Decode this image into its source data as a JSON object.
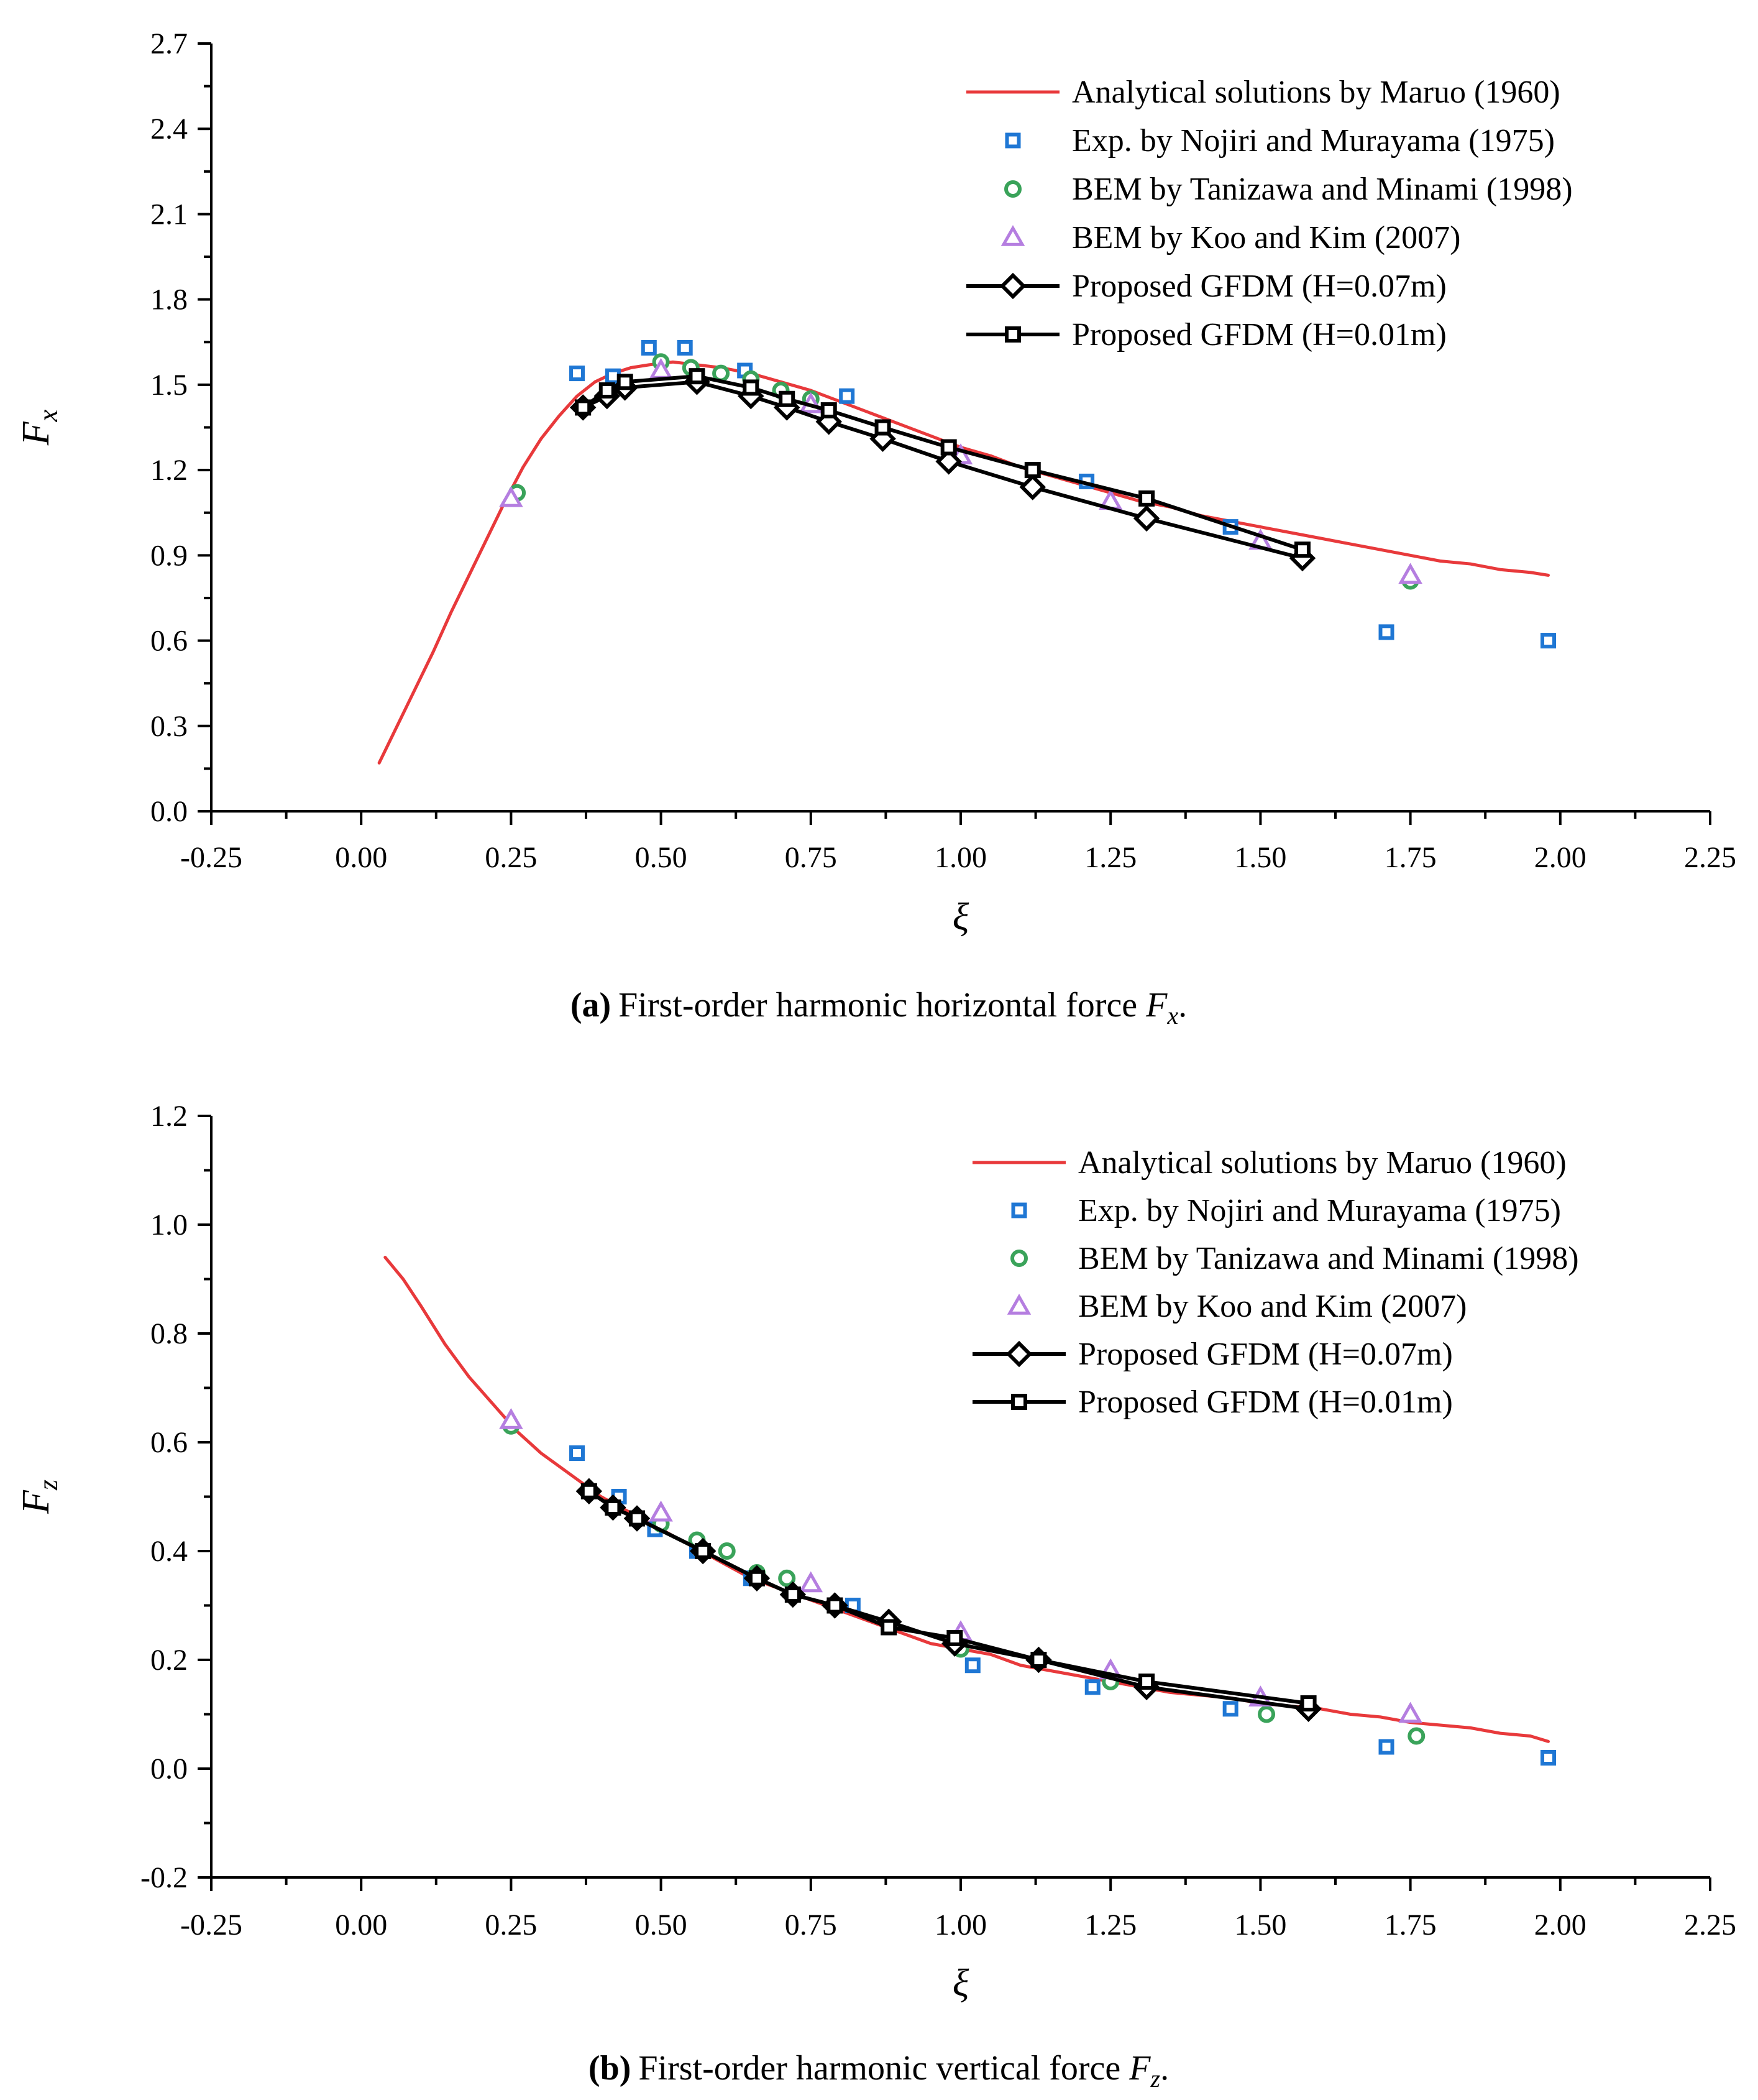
{
  "colors": {
    "analytical": "#e8393b",
    "exp": "#1f77d4",
    "tanizawa": "#3aa35a",
    "koo": "#b57ee0",
    "gfdm": "#000000"
  },
  "captions": [
    {
      "letter": "(a)",
      "text": "First-order harmonic horizontal force",
      "symbol": "F",
      "sub": "x",
      "end": "."
    },
    {
      "letter": "(b)",
      "text": "First-order harmonic vertical force",
      "symbol": "F",
      "sub": "z",
      "end": "."
    }
  ],
  "chart_data": [
    {
      "type": "line",
      "title": "",
      "xlabel": "ξ",
      "ylabel": "F",
      "ylabel_sub": "x",
      "xlim": [
        -0.25,
        2.25
      ],
      "ylim": [
        0.0,
        2.7
      ],
      "xticks": [
        -0.25,
        0.0,
        0.25,
        0.5,
        0.75,
        1.0,
        1.25,
        1.5,
        1.75,
        2.0,
        2.25
      ],
      "xtick_labels": [
        "-0.25",
        "0.00",
        "0.25",
        "0.50",
        "0.75",
        "1.00",
        "1.25",
        "1.50",
        "1.75",
        "2.00",
        "2.25"
      ],
      "yticks": [
        0.0,
        0.3,
        0.6,
        0.9,
        1.2,
        1.5,
        1.8,
        2.1,
        2.4,
        2.7
      ],
      "ytick_labels": [
        "0.0",
        "0.3",
        "0.6",
        "0.9",
        "1.2",
        "1.5",
        "1.8",
        "2.1",
        "2.4",
        "2.7"
      ],
      "legend_position": "top-right",
      "series": [
        {
          "name": "Analytical solutions by Maruo (1960)",
          "style": "line",
          "color_key": "analytical",
          "x": [
            0.03,
            0.06,
            0.09,
            0.12,
            0.15,
            0.18,
            0.21,
            0.24,
            0.27,
            0.3,
            0.33,
            0.36,
            0.39,
            0.42,
            0.45,
            0.48,
            0.52,
            0.56,
            0.6,
            0.65,
            0.7,
            0.75,
            0.8,
            0.85,
            0.9,
            0.95,
            1.0,
            1.05,
            1.1,
            1.15,
            1.2,
            1.25,
            1.3,
            1.35,
            1.4,
            1.45,
            1.5,
            1.55,
            1.6,
            1.65,
            1.7,
            1.75,
            1.8,
            1.85,
            1.9,
            1.95,
            1.98
          ],
          "y": [
            0.17,
            0.3,
            0.43,
            0.56,
            0.7,
            0.83,
            0.96,
            1.09,
            1.21,
            1.31,
            1.39,
            1.46,
            1.51,
            1.54,
            1.56,
            1.57,
            1.58,
            1.57,
            1.56,
            1.54,
            1.51,
            1.48,
            1.44,
            1.4,
            1.36,
            1.32,
            1.28,
            1.25,
            1.21,
            1.18,
            1.15,
            1.12,
            1.09,
            1.07,
            1.04,
            1.02,
            1.0,
            0.98,
            0.96,
            0.94,
            0.92,
            0.9,
            0.88,
            0.87,
            0.85,
            0.84,
            0.83
          ]
        },
        {
          "name": "Exp. by Nojiri and Murayama (1975)",
          "style": "square",
          "color_key": "exp",
          "x": [
            0.36,
            0.42,
            0.48,
            0.54,
            0.64,
            0.81,
            1.21,
            1.45,
            1.71,
            1.98
          ],
          "y": [
            1.54,
            1.53,
            1.63,
            1.63,
            1.55,
            1.46,
            1.16,
            1.0,
            0.63,
            0.6
          ]
        },
        {
          "name": "BEM by Tanizawa and Minami (1998)",
          "style": "circle",
          "color_key": "tanizawa",
          "x": [
            0.26,
            0.5,
            0.55,
            0.6,
            0.65,
            0.7,
            0.75,
            1.75
          ],
          "y": [
            1.12,
            1.58,
            1.56,
            1.54,
            1.52,
            1.48,
            1.45,
            0.81
          ]
        },
        {
          "name": "BEM by Koo and Kim (2007)",
          "style": "triangle",
          "color_key": "koo",
          "x": [
            0.25,
            0.5,
            0.75,
            1.0,
            1.25,
            1.5,
            1.75
          ],
          "y": [
            1.1,
            1.55,
            1.43,
            1.25,
            1.09,
            0.95,
            0.83
          ]
        },
        {
          "name": "Proposed GFDM (H=0.07m)",
          "style": "line-diamond",
          "color_key": "gfdm",
          "x": [
            0.37,
            0.41,
            0.44,
            0.56,
            0.65,
            0.71,
            0.78,
            0.87,
            0.98,
            1.12,
            1.31,
            1.57
          ],
          "y": [
            1.42,
            1.46,
            1.49,
            1.51,
            1.46,
            1.42,
            1.37,
            1.31,
            1.23,
            1.14,
            1.03,
            0.89
          ]
        },
        {
          "name": "Proposed GFDM (H=0.01m)",
          "style": "line-square",
          "color_key": "gfdm",
          "x": [
            0.37,
            0.41,
            0.44,
            0.56,
            0.65,
            0.71,
            0.78,
            0.87,
            0.98,
            1.12,
            1.31,
            1.57
          ],
          "y": [
            1.42,
            1.48,
            1.51,
            1.53,
            1.49,
            1.45,
            1.41,
            1.35,
            1.28,
            1.2,
            1.1,
            0.92
          ]
        }
      ]
    },
    {
      "type": "line",
      "title": "",
      "xlabel": "ξ",
      "ylabel": "F",
      "ylabel_sub": "z",
      "xlim": [
        -0.25,
        2.25
      ],
      "ylim": [
        -0.2,
        1.2
      ],
      "xticks": [
        -0.25,
        0.0,
        0.25,
        0.5,
        0.75,
        1.0,
        1.25,
        1.5,
        1.75,
        2.0,
        2.25
      ],
      "xtick_labels": [
        "-0.25",
        "0.00",
        "0.25",
        "0.50",
        "0.75",
        "1.00",
        "1.25",
        "1.50",
        "1.75",
        "2.00",
        "2.25"
      ],
      "yticks": [
        -0.2,
        0.0,
        0.2,
        0.4,
        0.6,
        0.8,
        1.0,
        1.2
      ],
      "ytick_labels": [
        "-0.2",
        "0.0",
        "0.2",
        "0.4",
        "0.6",
        "0.8",
        "1.0",
        "1.2"
      ],
      "legend_position": "top-right",
      "series": [
        {
          "name": "Analytical solutions by Maruo (1960)",
          "style": "line",
          "color_key": "analytical",
          "x": [
            0.04,
            0.07,
            0.1,
            0.14,
            0.18,
            0.22,
            0.26,
            0.3,
            0.35,
            0.4,
            0.45,
            0.5,
            0.55,
            0.6,
            0.65,
            0.7,
            0.75,
            0.8,
            0.85,
            0.9,
            0.95,
            1.0,
            1.05,
            1.1,
            1.15,
            1.2,
            1.25,
            1.3,
            1.35,
            1.4,
            1.45,
            1.5,
            1.55,
            1.6,
            1.65,
            1.7,
            1.75,
            1.8,
            1.85,
            1.9,
            1.95,
            1.98
          ],
          "y": [
            0.94,
            0.9,
            0.85,
            0.78,
            0.72,
            0.67,
            0.62,
            0.58,
            0.54,
            0.5,
            0.47,
            0.44,
            0.41,
            0.38,
            0.35,
            0.33,
            0.31,
            0.29,
            0.27,
            0.25,
            0.23,
            0.22,
            0.21,
            0.19,
            0.18,
            0.17,
            0.16,
            0.15,
            0.14,
            0.135,
            0.13,
            0.12,
            0.115,
            0.11,
            0.1,
            0.095,
            0.085,
            0.08,
            0.075,
            0.065,
            0.06,
            0.05
          ]
        },
        {
          "name": "Exp. by Nojiri and Murayama (1975)",
          "style": "square",
          "color_key": "exp",
          "x": [
            0.36,
            0.43,
            0.49,
            0.56,
            0.65,
            0.72,
            0.82,
            1.02,
            1.22,
            1.45,
            1.71,
            1.98
          ],
          "y": [
            0.58,
            0.5,
            0.44,
            0.4,
            0.35,
            0.32,
            0.3,
            0.19,
            0.15,
            0.11,
            0.04,
            0.02
          ]
        },
        {
          "name": "BEM by Tanizawa and Minami (1998)",
          "style": "circle",
          "color_key": "tanizawa",
          "x": [
            0.25,
            0.5,
            0.56,
            0.61,
            0.66,
            0.71,
            1.0,
            1.25,
            1.51,
            1.76
          ],
          "y": [
            0.63,
            0.45,
            0.42,
            0.4,
            0.36,
            0.35,
            0.22,
            0.16,
            0.1,
            0.06
          ]
        },
        {
          "name": "BEM by Koo and Kim (2007)",
          "style": "triangle",
          "color_key": "koo",
          "x": [
            0.25,
            0.5,
            0.75,
            1.0,
            1.25,
            1.5,
            1.75
          ],
          "y": [
            0.64,
            0.47,
            0.34,
            0.25,
            0.18,
            0.13,
            0.1
          ]
        },
        {
          "name": "Proposed GFDM (H=0.07m)",
          "style": "line-diamond",
          "color_key": "gfdm",
          "x": [
            0.38,
            0.42,
            0.46,
            0.57,
            0.66,
            0.72,
            0.79,
            0.88,
            0.99,
            1.13,
            1.31,
            1.58
          ],
          "y": [
            0.51,
            0.48,
            0.46,
            0.4,
            0.35,
            0.32,
            0.3,
            0.27,
            0.23,
            0.2,
            0.15,
            0.11
          ]
        },
        {
          "name": "Proposed GFDM (H=0.01m)",
          "style": "line-square",
          "color_key": "gfdm",
          "x": [
            0.38,
            0.42,
            0.46,
            0.57,
            0.66,
            0.72,
            0.79,
            0.88,
            0.99,
            1.13,
            1.31,
            1.58
          ],
          "y": [
            0.51,
            0.48,
            0.46,
            0.4,
            0.35,
            0.32,
            0.3,
            0.26,
            0.24,
            0.2,
            0.16,
            0.12
          ]
        }
      ]
    }
  ]
}
